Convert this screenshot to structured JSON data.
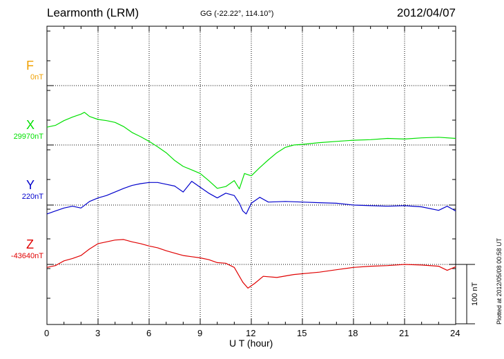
{
  "header": {
    "title": "Learmonth (LRM)",
    "coords": "GG (-22.22°, 114.10°)",
    "date": "2012/04/07"
  },
  "footer": {
    "plotted": "Plotted at 2012/05/08 00:58 UT"
  },
  "colors": {
    "F": "#f0a000",
    "X": "#00e000",
    "Y": "#0000cc",
    "Z": "#e00000"
  },
  "chart_data": {
    "type": "line",
    "title": "Learmonth (LRM)",
    "xlabel": "U T (hour)",
    "ylabel": "",
    "xlim": [
      0,
      24
    ],
    "x_ticks": [
      0,
      3,
      6,
      9,
      12,
      15,
      18,
      21,
      24
    ],
    "x_tick_labels": [
      "0",
      "3",
      "6",
      "9",
      "12",
      "15",
      "18",
      "21",
      "24"
    ],
    "grid": true,
    "scale_bar": {
      "value": 100,
      "label": "100 nT"
    },
    "components": [
      {
        "name": "F",
        "baseline_label": "0nT",
        "color": "#f0a000",
        "x": [],
        "values": []
      },
      {
        "name": "X",
        "baseline_label": "29970nT",
        "color": "#00e000",
        "x": [
          0,
          0.5,
          1,
          1.5,
          2,
          2.2,
          2.5,
          3,
          3.5,
          4,
          4.5,
          5,
          5.5,
          6,
          6.5,
          7,
          7.5,
          8,
          8.5,
          9,
          9.5,
          10,
          10.5,
          11,
          11.3,
          11.6,
          12,
          12.5,
          13,
          13.5,
          14,
          14.5,
          15,
          16,
          17,
          18,
          19,
          20,
          21,
          22,
          23,
          24
        ],
        "values": [
          30,
          33,
          41,
          47,
          52,
          55,
          48,
          43,
          41,
          38,
          31,
          21,
          14,
          6,
          -3,
          -13,
          -26,
          -36,
          -42,
          -48,
          -60,
          -73,
          -70,
          -60,
          -74,
          -48,
          -52,
          -38,
          -25,
          -13,
          -4,
          0,
          1,
          4,
          6,
          8,
          9,
          11,
          10,
          12,
          13,
          11
        ]
      },
      {
        "name": "Y",
        "baseline_label": "220nT",
        "color": "#0000cc",
        "x": [
          0,
          0.5,
          1,
          1.5,
          2,
          2.5,
          3,
          3.5,
          4,
          4.5,
          5,
          5.5,
          6,
          6.5,
          7,
          7.5,
          8,
          8.5,
          9,
          9.5,
          10,
          10.5,
          11,
          11.3,
          11.5,
          11.7,
          12,
          12.5,
          13,
          14,
          15,
          16,
          17,
          18,
          19,
          20,
          21,
          22,
          23,
          23.5,
          24
        ],
        "values": [
          -15,
          -10,
          -5,
          -2,
          -5,
          6,
          12,
          16,
          22,
          28,
          33,
          36,
          38,
          38,
          35,
          32,
          22,
          40,
          30,
          20,
          12,
          20,
          16,
          3,
          -10,
          -15,
          3,
          13,
          5,
          6,
          5,
          4,
          3,
          0,
          -1,
          -2,
          -1,
          -3,
          -9,
          -2,
          -10
        ]
      },
      {
        "name": "Z",
        "baseline_label": "-43640nT",
        "color": "#e00000",
        "x": [
          0,
          0.5,
          1,
          1.5,
          2,
          2.5,
          3,
          3.5,
          4,
          4.5,
          5,
          5.5,
          6,
          6.5,
          7,
          7.5,
          8,
          8.5,
          9,
          9.5,
          10,
          10.5,
          11,
          11.5,
          11.8,
          12.2,
          12.7,
          13.5,
          14.5,
          16,
          17,
          18,
          19,
          20,
          21,
          22,
          23,
          23.5,
          24
        ],
        "values": [
          -5,
          -2,
          6,
          10,
          15,
          26,
          35,
          38,
          41,
          42,
          38,
          35,
          31,
          28,
          23,
          19,
          15,
          13,
          11,
          8,
          3,
          2,
          -5,
          -30,
          -40,
          -32,
          -20,
          -22,
          -17,
          -13,
          -9,
          -5,
          -3,
          -2,
          0,
          -1,
          -3,
          -10,
          -4
        ]
      }
    ]
  }
}
